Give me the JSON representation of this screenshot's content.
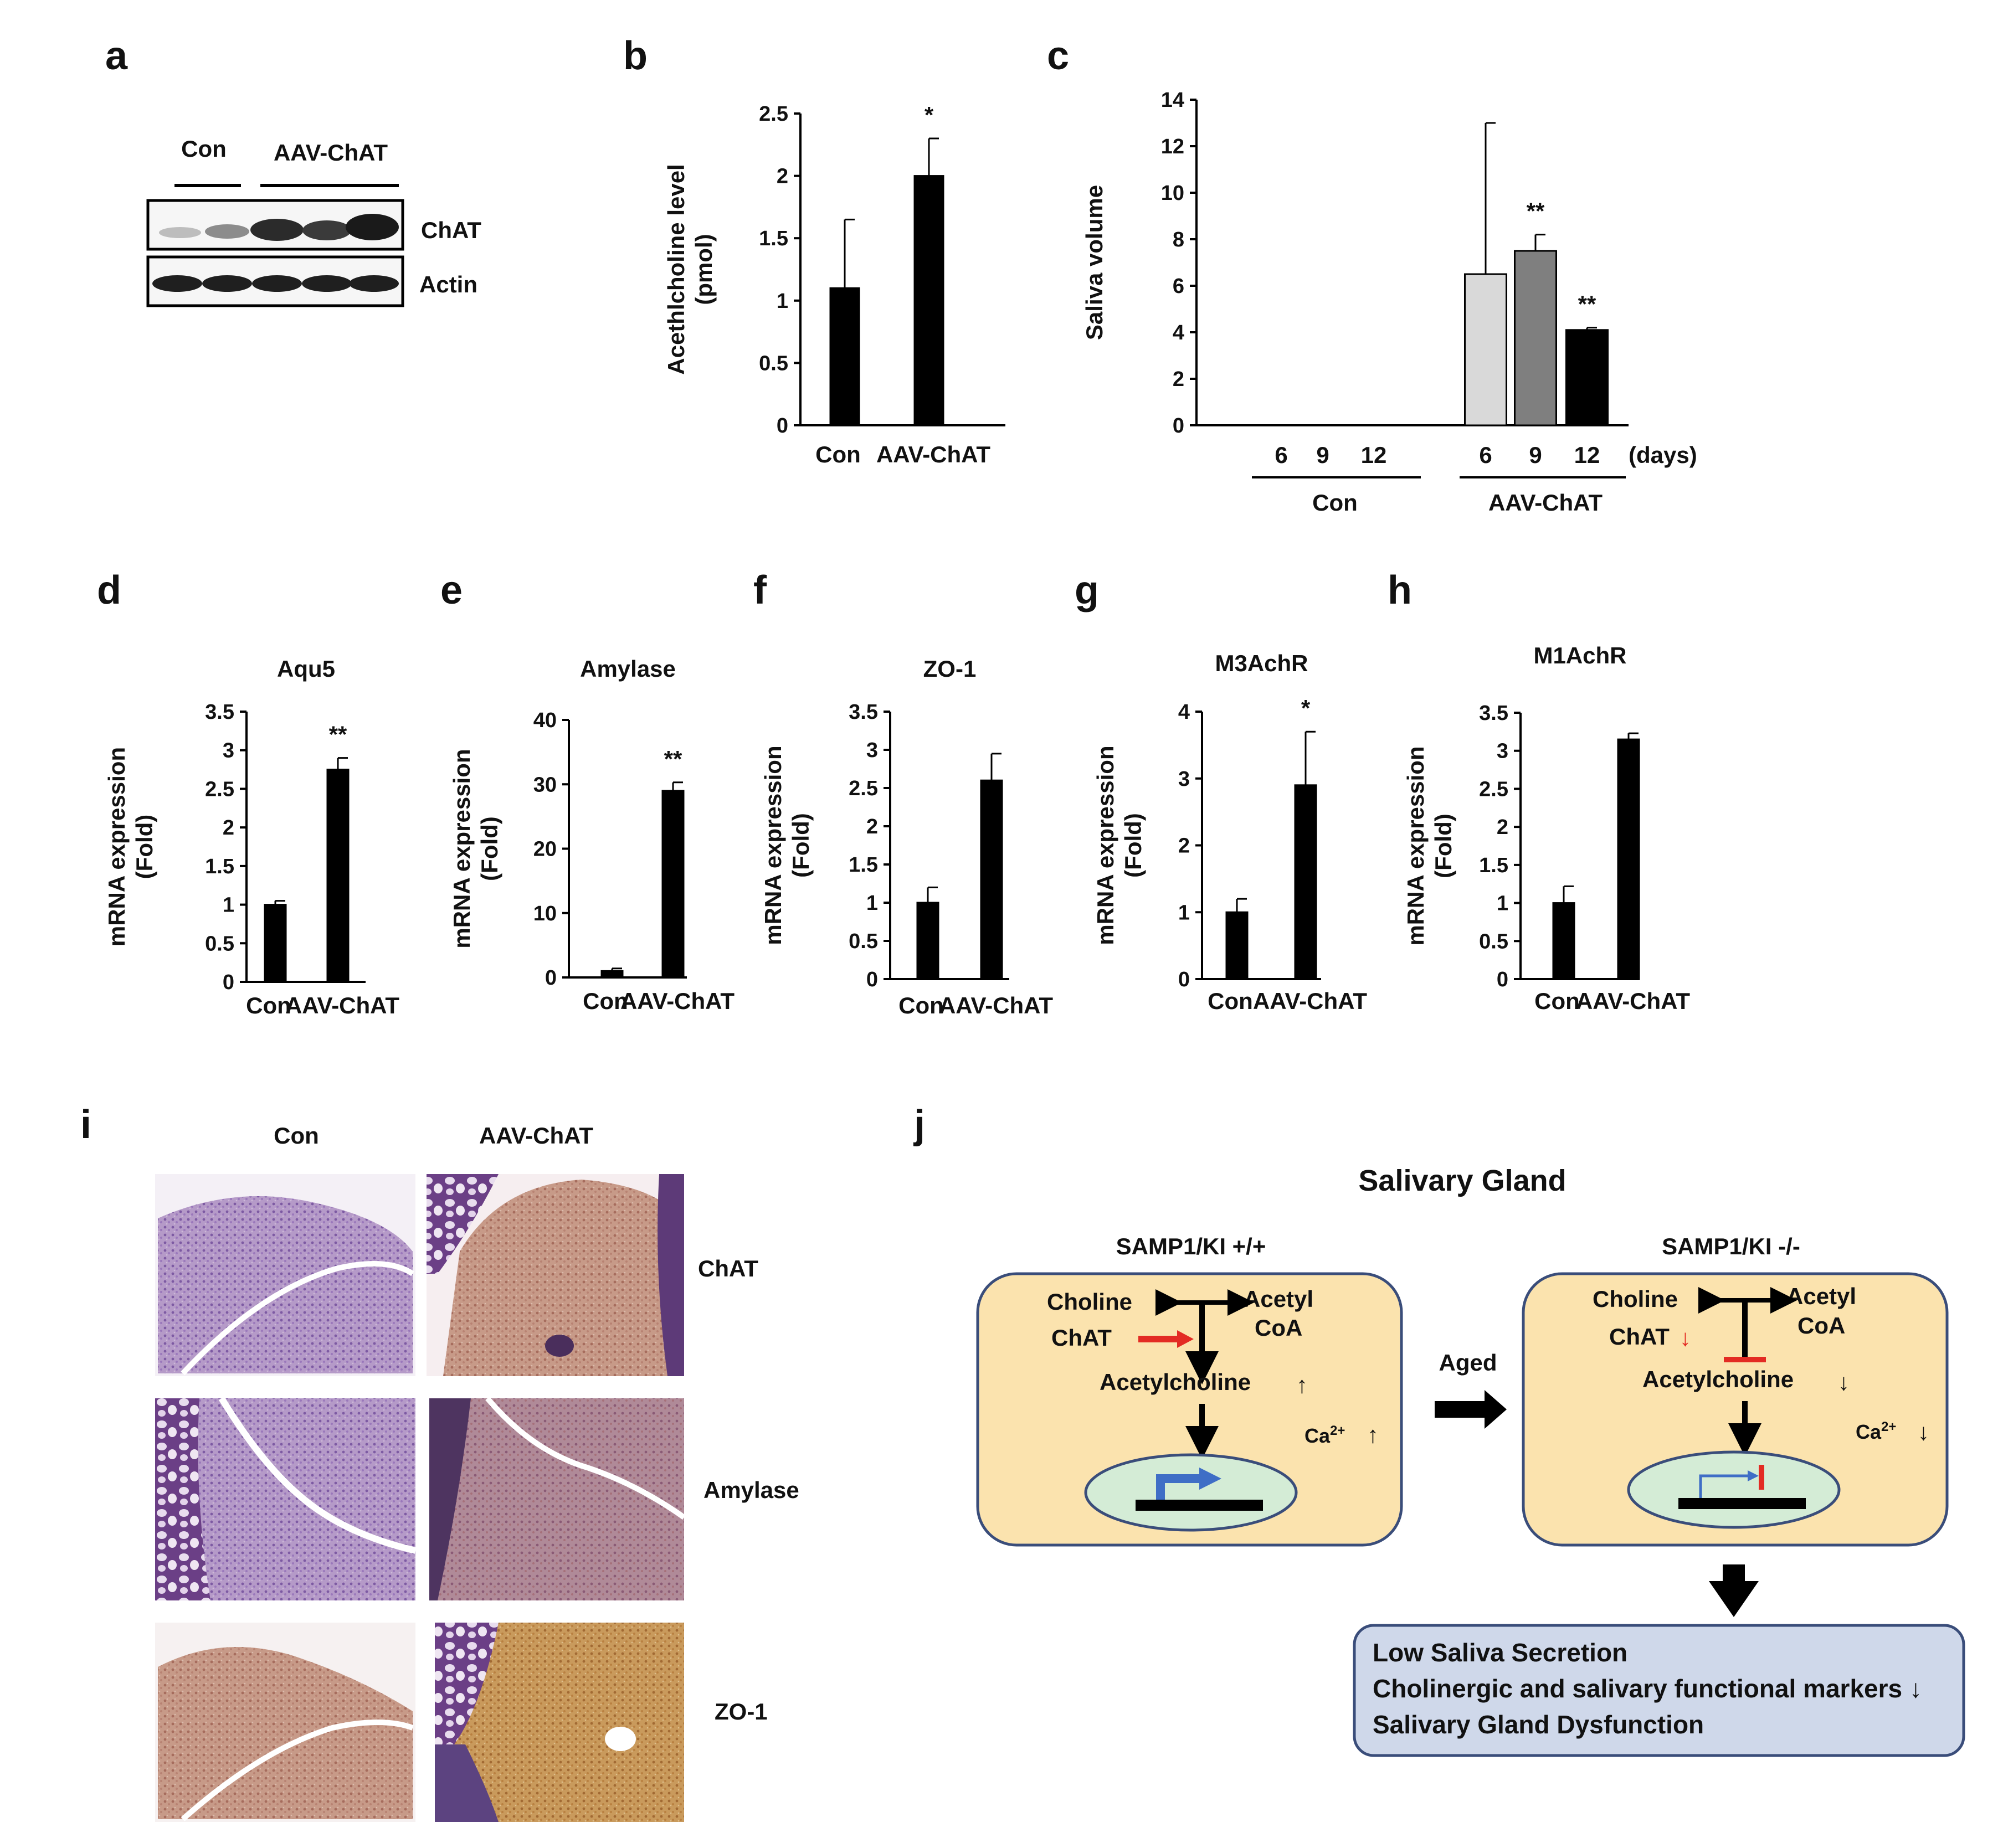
{
  "panels": {
    "a": {
      "letter": "a",
      "groups": [
        "Con",
        "AAV-ChAT"
      ],
      "bands": [
        "ChAT",
        "Actin"
      ]
    },
    "b": {
      "letter": "b"
    },
    "c": {
      "letter": "c",
      "days_unit": "(days)",
      "groups": [
        "Con",
        "AAV-ChAT"
      ]
    },
    "d": {
      "letter": "d"
    },
    "e": {
      "letter": "e"
    },
    "f": {
      "letter": "f"
    },
    "g": {
      "letter": "g"
    },
    "h": {
      "letter": "h"
    },
    "i": {
      "letter": "i",
      "columns": [
        "Con",
        "AAV-ChAT"
      ],
      "rows": [
        "ChAT",
        "Amylase",
        "ZO-1"
      ]
    },
    "j": {
      "letter": "j",
      "title": "Salivary Gland",
      "left_title": "SAMP1/KI +/+",
      "right_title": "SAMP1/KI -/-",
      "choline": "Choline",
      "acetyl": "Acetyl",
      "coa": "CoA",
      "chat": "ChAT",
      "acetylcholine": "Acetylcholine",
      "ca": "Ca",
      "ca_sup": "2+",
      "aged": "Aged",
      "outcome": [
        "Low Saliva Secretion",
        "Cholinergic and salivary functional  markers ↓",
        "Salivary Gland Dysfunction"
      ]
    }
  },
  "chart_data": [
    {
      "panel": "b",
      "type": "bar",
      "categories": [
        "Con",
        "AAV-ChAT"
      ],
      "values": [
        1.1,
        2.0
      ],
      "errors": [
        0.55,
        0.3
      ],
      "ylabel": "Acethlcholine level\n(pmol)",
      "ylim": [
        0,
        2.5
      ],
      "yticks": [
        0,
        0.5,
        1,
        1.5,
        2,
        2.5
      ],
      "annotations": [
        "",
        "*"
      ]
    },
    {
      "panel": "c",
      "type": "bar",
      "categories": [
        "6",
        "9",
        "12",
        "6",
        "9",
        "12"
      ],
      "groups": [
        "Con",
        "AAV-ChAT"
      ],
      "values": [
        0,
        0,
        0,
        6.5,
        7.5,
        4.1
      ],
      "errors": [
        0,
        0,
        0,
        6.5,
        0.7,
        0.1
      ],
      "colors": [
        "#d9d9d9",
        "#d9d9d9",
        "#d9d9d9",
        "#d9d9d9",
        "#7f7f7f",
        "#000000"
      ],
      "ylabel": "Saliva volume",
      "ylim": [
        0,
        14
      ],
      "yticks": [
        0,
        2,
        4,
        6,
        8,
        10,
        12,
        14
      ],
      "annotations": [
        "",
        "",
        "",
        "",
        "**",
        "**"
      ]
    },
    {
      "panel": "d",
      "type": "bar",
      "title": "Aqu5",
      "categories": [
        "Con",
        "AAV-ChAT"
      ],
      "values": [
        1.0,
        2.75
      ],
      "errors": [
        0.05,
        0.15
      ],
      "ylabel": "mRNA expression\n(Fold)",
      "ylim": [
        0,
        3.5
      ],
      "yticks": [
        0,
        0.5,
        1,
        1.5,
        2,
        2.5,
        3,
        3.5
      ],
      "annotations": [
        "",
        "**"
      ]
    },
    {
      "panel": "e",
      "type": "bar",
      "title": "Amylase",
      "categories": [
        "Con",
        "AAV-ChAT"
      ],
      "values": [
        1.0,
        29.0
      ],
      "errors": [
        0.4,
        1.3
      ],
      "ylabel": "mRNA expression\n(Fold)",
      "ylim": [
        0,
        40
      ],
      "yticks": [
        0,
        10,
        20,
        30,
        40
      ],
      "annotations": [
        "",
        "**"
      ]
    },
    {
      "panel": "f",
      "type": "bar",
      "title": "ZO-1",
      "categories": [
        "Con",
        "AAV-ChAT"
      ],
      "values": [
        1.0,
        2.6
      ],
      "errors": [
        0.2,
        0.35
      ],
      "ylabel": "mRNA expression\n(Fold)",
      "ylim": [
        0,
        3.5
      ],
      "yticks": [
        0,
        0.5,
        1,
        1.5,
        2,
        2.5,
        3,
        3.5
      ],
      "annotations": [
        "",
        ""
      ]
    },
    {
      "panel": "g",
      "type": "bar",
      "title": "M3AchR",
      "categories": [
        "Con",
        "AAV-ChAT"
      ],
      "values": [
        1.0,
        2.9
      ],
      "errors": [
        0.2,
        0.8
      ],
      "ylabel": "mRNA expression\n(Fold)",
      "ylim": [
        0,
        4
      ],
      "yticks": [
        0,
        1,
        2,
        3,
        4
      ],
      "annotations": [
        "",
        "*"
      ]
    },
    {
      "panel": "h",
      "type": "bar",
      "title": "M1AchR",
      "categories": [
        "Con",
        "AAV-ChAT"
      ],
      "values": [
        1.0,
        3.15
      ],
      "errors": [
        0.22,
        0.08
      ],
      "ylabel": "mRNA expression\n(Fold)",
      "ylim": [
        0,
        3.5
      ],
      "yticks": [
        0,
        0.5,
        1,
        1.5,
        2,
        2.5,
        3,
        3.5
      ],
      "annotations": [
        "",
        ""
      ]
    }
  ]
}
